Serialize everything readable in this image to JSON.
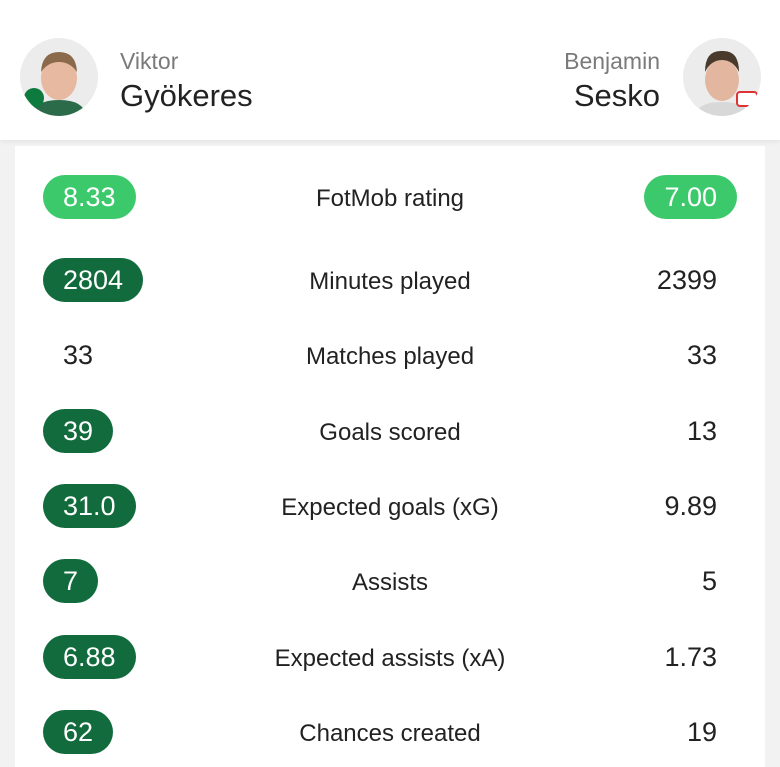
{
  "header": {
    "left_player": {
      "first_name": "Viktor",
      "last_name": "Gyökeres"
    },
    "right_player": {
      "first_name": "Benjamin",
      "last_name": "Sesko"
    }
  },
  "stats": {
    "rows": [
      {
        "label": "FotMob rating",
        "left": "8.33",
        "right": "7.00",
        "left_badge": "light",
        "right_badge": "light"
      },
      {
        "label": "Minutes played",
        "left": "2804",
        "right": "2399",
        "left_badge": "dark",
        "right_badge": null
      },
      {
        "label": "Matches played",
        "left": "33",
        "right": "33",
        "left_badge": null,
        "right_badge": null
      },
      {
        "label": "Goals scored",
        "left": "39",
        "right": "13",
        "left_badge": "dark",
        "right_badge": null
      },
      {
        "label": "Expected goals (xG)",
        "left": "31.0",
        "right": "9.89",
        "left_badge": "dark",
        "right_badge": null
      },
      {
        "label": "Assists",
        "left": "7",
        "right": "5",
        "left_badge": "dark",
        "right_badge": null
      },
      {
        "label": "Expected assists (xA)",
        "left": "6.88",
        "right": "1.73",
        "left_badge": "dark",
        "right_badge": null
      },
      {
        "label": "Chances created",
        "left": "62",
        "right": "19",
        "left_badge": "dark",
        "right_badge": null
      }
    ]
  }
}
